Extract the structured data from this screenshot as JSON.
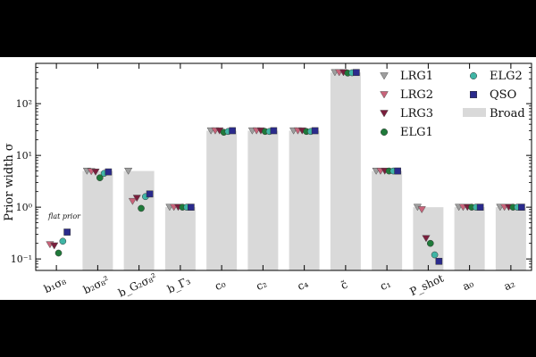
{
  "chart_data": {
    "type": "scatter",
    "ylabel": "Prior width σ",
    "yscale": "log",
    "ylim": [
      0.06,
      600
    ],
    "y_ticks": [
      "10⁻¹",
      "10⁰",
      "10¹",
      "10²"
    ],
    "categories": [
      "b₁σ₈",
      "b₂σ₈²",
      "b_G₂σ₈²",
      "b_Γ₃",
      "c₀",
      "c₂",
      "c₄",
      "c̃",
      "c₁",
      "P_shot",
      "a₀",
      "a₂"
    ],
    "annotation": "flat prior",
    "legend_position": "top-right",
    "broad": {
      "name": "Broad",
      "color": "#d9d9d9",
      "values": [
        null,
        5,
        5,
        1,
        30,
        30,
        30,
        400,
        5,
        1,
        1,
        1
      ]
    },
    "series": [
      {
        "name": "LRG1",
        "color": "#9e9e9e",
        "marker": "triangle-down",
        "values": [
          null,
          5,
          5,
          1,
          30,
          30,
          30,
          400,
          5,
          1,
          1,
          1
        ]
      },
      {
        "name": "LRG2",
        "color": "#c9637a",
        "marker": "triangle-down",
        "values": [
          0.19,
          4.9,
          1.3,
          1,
          30,
          30,
          30,
          400,
          5,
          0.9,
          1,
          1
        ]
      },
      {
        "name": "LRG3",
        "color": "#7a1f3d",
        "marker": "triangle-down",
        "values": [
          0.18,
          4.8,
          1.5,
          1,
          30,
          30,
          30,
          400,
          5,
          0.25,
          1,
          1
        ]
      },
      {
        "name": "ELG1",
        "color": "#1f7a3a",
        "marker": "circle",
        "values": [
          0.13,
          3.7,
          0.95,
          1,
          28,
          29,
          29,
          390,
          5,
          0.2,
          1,
          1
        ]
      },
      {
        "name": "ELG2",
        "color": "#3fb5a5",
        "marker": "circle",
        "values": [
          0.22,
          4.5,
          1.6,
          1,
          29,
          29,
          29,
          395,
          5,
          0.12,
          1,
          1
        ]
      },
      {
        "name": "QSO",
        "color": "#2a2a8c",
        "marker": "square",
        "values": [
          0.33,
          4.8,
          1.8,
          1,
          30,
          30,
          30,
          400,
          5,
          0.09,
          1,
          1
        ]
      }
    ]
  }
}
